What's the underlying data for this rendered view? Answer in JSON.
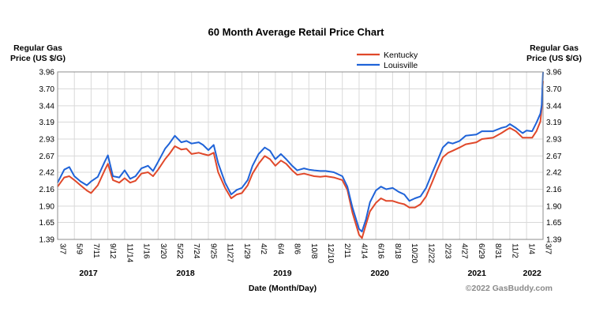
{
  "chart_data": {
    "type": "line",
    "title": "60 Month Average Retail Price Chart",
    "ylabel_left": [
      "Regular Gas",
      "Price (US $/G)"
    ],
    "ylabel_right": [
      "Regular Gas",
      "Price (US $/G)"
    ],
    "xlabel": "Date (Month/Day)",
    "credit": "©2022 GasBuddy.com",
    "ylim": [
      1.39,
      3.96
    ],
    "yticks": [
      "3.96",
      "3.70",
      "3.44",
      "3.19",
      "2.93",
      "2.67",
      "2.42",
      "2.16",
      "1.90",
      "1.65",
      "1.39"
    ],
    "x_start": "2017-03-07",
    "x_end": "2022-03-07",
    "xticks": [
      {
        "label": "3/7",
        "date": "2017-03-07"
      },
      {
        "label": "5/9",
        "date": "2017-05-09"
      },
      {
        "label": "7/11",
        "date": "2017-07-11"
      },
      {
        "label": "9/12",
        "date": "2017-09-12"
      },
      {
        "label": "11/14",
        "date": "2017-11-14"
      },
      {
        "label": "1/16",
        "date": "2018-01-16"
      },
      {
        "label": "3/20",
        "date": "2018-03-20"
      },
      {
        "label": "5/22",
        "date": "2018-05-22"
      },
      {
        "label": "7/24",
        "date": "2018-07-24"
      },
      {
        "label": "9/25",
        "date": "2018-09-25"
      },
      {
        "label": "11/27",
        "date": "2018-11-27"
      },
      {
        "label": "1/29",
        "date": "2019-01-29"
      },
      {
        "label": "4/2",
        "date": "2019-04-02"
      },
      {
        "label": "6/4",
        "date": "2019-06-04"
      },
      {
        "label": "8/6",
        "date": "2019-08-06"
      },
      {
        "label": "10/8",
        "date": "2019-10-08"
      },
      {
        "label": "12/10",
        "date": "2019-12-10"
      },
      {
        "label": "2/11",
        "date": "2020-02-11"
      },
      {
        "label": "4/14",
        "date": "2020-04-14"
      },
      {
        "label": "6/16",
        "date": "2020-06-16"
      },
      {
        "label": "8/18",
        "date": "2020-08-18"
      },
      {
        "label": "10/20",
        "date": "2020-10-20"
      },
      {
        "label": "12/22",
        "date": "2020-12-22"
      },
      {
        "label": "2/23",
        "date": "2021-02-23"
      },
      {
        "label": "4/27",
        "date": "2021-04-27"
      },
      {
        "label": "6/29",
        "date": "2021-06-29"
      },
      {
        "label": "8/31",
        "date": "2021-08-31"
      },
      {
        "label": "11/2",
        "date": "2021-11-02"
      },
      {
        "label": "1/4",
        "date": "2022-01-04"
      },
      {
        "label": "3/7",
        "date": "2022-03-07"
      }
    ],
    "years": [
      {
        "label": "2017",
        "date": "2017-07-01"
      },
      {
        "label": "2018",
        "date": "2018-07-01"
      },
      {
        "label": "2019",
        "date": "2019-07-01"
      },
      {
        "label": "2020",
        "date": "2020-07-01"
      },
      {
        "label": "2021",
        "date": "2021-07-01"
      },
      {
        "label": "2022",
        "date": "2022-01-25"
      }
    ],
    "legend": "top-center",
    "grid": true,
    "series": [
      {
        "name": "Kentucky",
        "color": "#e0482a",
        "points": [
          [
            "2017-03-07",
            2.2
          ],
          [
            "2017-04-01",
            2.34
          ],
          [
            "2017-04-20",
            2.36
          ],
          [
            "2017-05-09",
            2.3
          ],
          [
            "2017-06-01",
            2.22
          ],
          [
            "2017-06-25",
            2.14
          ],
          [
            "2017-07-11",
            2.1
          ],
          [
            "2017-08-05",
            2.22
          ],
          [
            "2017-08-31",
            2.45
          ],
          [
            "2017-09-12",
            2.55
          ],
          [
            "2017-10-01",
            2.3
          ],
          [
            "2017-10-25",
            2.26
          ],
          [
            "2017-11-14",
            2.33
          ],
          [
            "2017-12-05",
            2.26
          ],
          [
            "2017-12-25",
            2.29
          ],
          [
            "2018-01-16",
            2.4
          ],
          [
            "2018-02-10",
            2.42
          ],
          [
            "2018-03-01",
            2.36
          ],
          [
            "2018-03-20",
            2.46
          ],
          [
            "2018-04-15",
            2.62
          ],
          [
            "2018-05-01",
            2.7
          ],
          [
            "2018-05-22",
            2.82
          ],
          [
            "2018-06-15",
            2.77
          ],
          [
            "2018-07-05",
            2.78
          ],
          [
            "2018-07-24",
            2.7
          ],
          [
            "2018-08-20",
            2.72
          ],
          [
            "2018-09-05",
            2.7
          ],
          [
            "2018-09-25",
            2.68
          ],
          [
            "2018-10-15",
            2.72
          ],
          [
            "2018-11-01",
            2.42
          ],
          [
            "2018-11-27",
            2.18
          ],
          [
            "2018-12-20",
            2.02
          ],
          [
            "2019-01-10",
            2.08
          ],
          [
            "2019-01-29",
            2.1
          ],
          [
            "2019-02-20",
            2.22
          ],
          [
            "2019-03-10",
            2.4
          ],
          [
            "2019-04-02",
            2.55
          ],
          [
            "2019-04-25",
            2.67
          ],
          [
            "2019-05-15",
            2.62
          ],
          [
            "2019-06-04",
            2.52
          ],
          [
            "2019-06-25",
            2.6
          ],
          [
            "2019-07-15",
            2.55
          ],
          [
            "2019-08-06",
            2.45
          ],
          [
            "2019-08-25",
            2.38
          ],
          [
            "2019-09-20",
            2.4
          ],
          [
            "2019-10-08",
            2.38
          ],
          [
            "2019-10-28",
            2.36
          ],
          [
            "2019-11-20",
            2.35
          ],
          [
            "2019-12-10",
            2.36
          ],
          [
            "2020-01-10",
            2.34
          ],
          [
            "2020-02-11",
            2.3
          ],
          [
            "2020-03-01",
            2.15
          ],
          [
            "2020-03-20",
            1.8
          ],
          [
            "2020-04-14",
            1.46
          ],
          [
            "2020-04-25",
            1.41
          ],
          [
            "2020-05-10",
            1.62
          ],
          [
            "2020-05-25",
            1.82
          ],
          [
            "2020-06-16",
            1.95
          ],
          [
            "2020-07-05",
            2.02
          ],
          [
            "2020-07-25",
            1.98
          ],
          [
            "2020-08-18",
            1.98
          ],
          [
            "2020-09-10",
            1.95
          ],
          [
            "2020-10-01",
            1.93
          ],
          [
            "2020-10-20",
            1.88
          ],
          [
            "2020-11-10",
            1.88
          ],
          [
            "2020-12-01",
            1.93
          ],
          [
            "2020-12-22",
            2.05
          ],
          [
            "2021-01-15",
            2.28
          ],
          [
            "2021-02-01",
            2.45
          ],
          [
            "2021-02-23",
            2.65
          ],
          [
            "2021-03-15",
            2.72
          ],
          [
            "2021-04-01",
            2.75
          ],
          [
            "2021-04-27",
            2.8
          ],
          [
            "2021-05-20",
            2.85
          ],
          [
            "2021-06-29",
            2.88
          ],
          [
            "2021-07-20",
            2.93
          ],
          [
            "2021-08-31",
            2.95
          ],
          [
            "2021-10-01",
            3.02
          ],
          [
            "2021-10-20",
            3.07
          ],
          [
            "2021-11-02",
            3.1
          ],
          [
            "2021-11-25",
            3.05
          ],
          [
            "2021-12-20",
            2.95
          ],
          [
            "2022-01-04",
            2.95
          ],
          [
            "2022-01-25",
            2.95
          ],
          [
            "2022-02-10",
            3.05
          ],
          [
            "2022-02-25",
            3.2
          ],
          [
            "2022-03-02",
            3.4
          ],
          [
            "2022-03-05",
            3.7
          ],
          [
            "2022-03-07",
            3.82
          ]
        ]
      },
      {
        "name": "Louisville",
        "color": "#1f63d8",
        "points": [
          [
            "2017-03-07",
            2.26
          ],
          [
            "2017-04-01",
            2.46
          ],
          [
            "2017-04-20",
            2.5
          ],
          [
            "2017-05-09",
            2.36
          ],
          [
            "2017-06-01",
            2.28
          ],
          [
            "2017-06-25",
            2.22
          ],
          [
            "2017-07-11",
            2.28
          ],
          [
            "2017-08-05",
            2.35
          ],
          [
            "2017-08-31",
            2.58
          ],
          [
            "2017-09-12",
            2.68
          ],
          [
            "2017-10-01",
            2.36
          ],
          [
            "2017-10-25",
            2.34
          ],
          [
            "2017-11-14",
            2.45
          ],
          [
            "2017-12-05",
            2.32
          ],
          [
            "2017-12-25",
            2.36
          ],
          [
            "2018-01-16",
            2.48
          ],
          [
            "2018-02-10",
            2.52
          ],
          [
            "2018-03-01",
            2.44
          ],
          [
            "2018-03-20",
            2.58
          ],
          [
            "2018-04-15",
            2.78
          ],
          [
            "2018-05-01",
            2.86
          ],
          [
            "2018-05-22",
            2.98
          ],
          [
            "2018-06-15",
            2.88
          ],
          [
            "2018-07-05",
            2.9
          ],
          [
            "2018-07-24",
            2.86
          ],
          [
            "2018-08-20",
            2.88
          ],
          [
            "2018-09-05",
            2.84
          ],
          [
            "2018-09-25",
            2.76
          ],
          [
            "2018-10-15",
            2.84
          ],
          [
            "2018-11-01",
            2.56
          ],
          [
            "2018-11-27",
            2.26
          ],
          [
            "2018-12-20",
            2.08
          ],
          [
            "2019-01-10",
            2.15
          ],
          [
            "2019-01-29",
            2.18
          ],
          [
            "2019-02-20",
            2.3
          ],
          [
            "2019-03-10",
            2.52
          ],
          [
            "2019-04-02",
            2.7
          ],
          [
            "2019-04-25",
            2.8
          ],
          [
            "2019-05-15",
            2.75
          ],
          [
            "2019-06-04",
            2.62
          ],
          [
            "2019-06-25",
            2.7
          ],
          [
            "2019-07-15",
            2.62
          ],
          [
            "2019-08-06",
            2.52
          ],
          [
            "2019-08-25",
            2.45
          ],
          [
            "2019-09-20",
            2.48
          ],
          [
            "2019-10-08",
            2.46
          ],
          [
            "2019-10-28",
            2.45
          ],
          [
            "2019-11-20",
            2.44
          ],
          [
            "2019-12-10",
            2.44
          ],
          [
            "2020-01-10",
            2.42
          ],
          [
            "2020-02-11",
            2.36
          ],
          [
            "2020-03-01",
            2.2
          ],
          [
            "2020-03-20",
            1.88
          ],
          [
            "2020-04-14",
            1.55
          ],
          [
            "2020-04-25",
            1.51
          ],
          [
            "2020-05-10",
            1.7
          ],
          [
            "2020-05-25",
            1.96
          ],
          [
            "2020-06-16",
            2.14
          ],
          [
            "2020-07-05",
            2.2
          ],
          [
            "2020-07-25",
            2.16
          ],
          [
            "2020-08-18",
            2.18
          ],
          [
            "2020-09-10",
            2.12
          ],
          [
            "2020-10-01",
            2.08
          ],
          [
            "2020-10-20",
            1.98
          ],
          [
            "2020-11-10",
            2.02
          ],
          [
            "2020-12-01",
            2.05
          ],
          [
            "2020-12-22",
            2.18
          ],
          [
            "2021-01-15",
            2.42
          ],
          [
            "2021-02-01",
            2.58
          ],
          [
            "2021-02-23",
            2.8
          ],
          [
            "2021-03-15",
            2.88
          ],
          [
            "2021-04-01",
            2.86
          ],
          [
            "2021-04-27",
            2.9
          ],
          [
            "2021-05-20",
            2.98
          ],
          [
            "2021-06-29",
            3.0
          ],
          [
            "2021-07-20",
            3.05
          ],
          [
            "2021-08-31",
            3.05
          ],
          [
            "2021-10-01",
            3.1
          ],
          [
            "2021-10-20",
            3.12
          ],
          [
            "2021-11-02",
            3.16
          ],
          [
            "2021-11-25",
            3.1
          ],
          [
            "2021-12-20",
            3.02
          ],
          [
            "2022-01-04",
            3.06
          ],
          [
            "2022-01-25",
            3.05
          ],
          [
            "2022-02-10",
            3.18
          ],
          [
            "2022-02-25",
            3.32
          ],
          [
            "2022-03-02",
            3.45
          ],
          [
            "2022-03-05",
            3.75
          ],
          [
            "2022-03-07",
            3.96
          ]
        ]
      }
    ]
  }
}
